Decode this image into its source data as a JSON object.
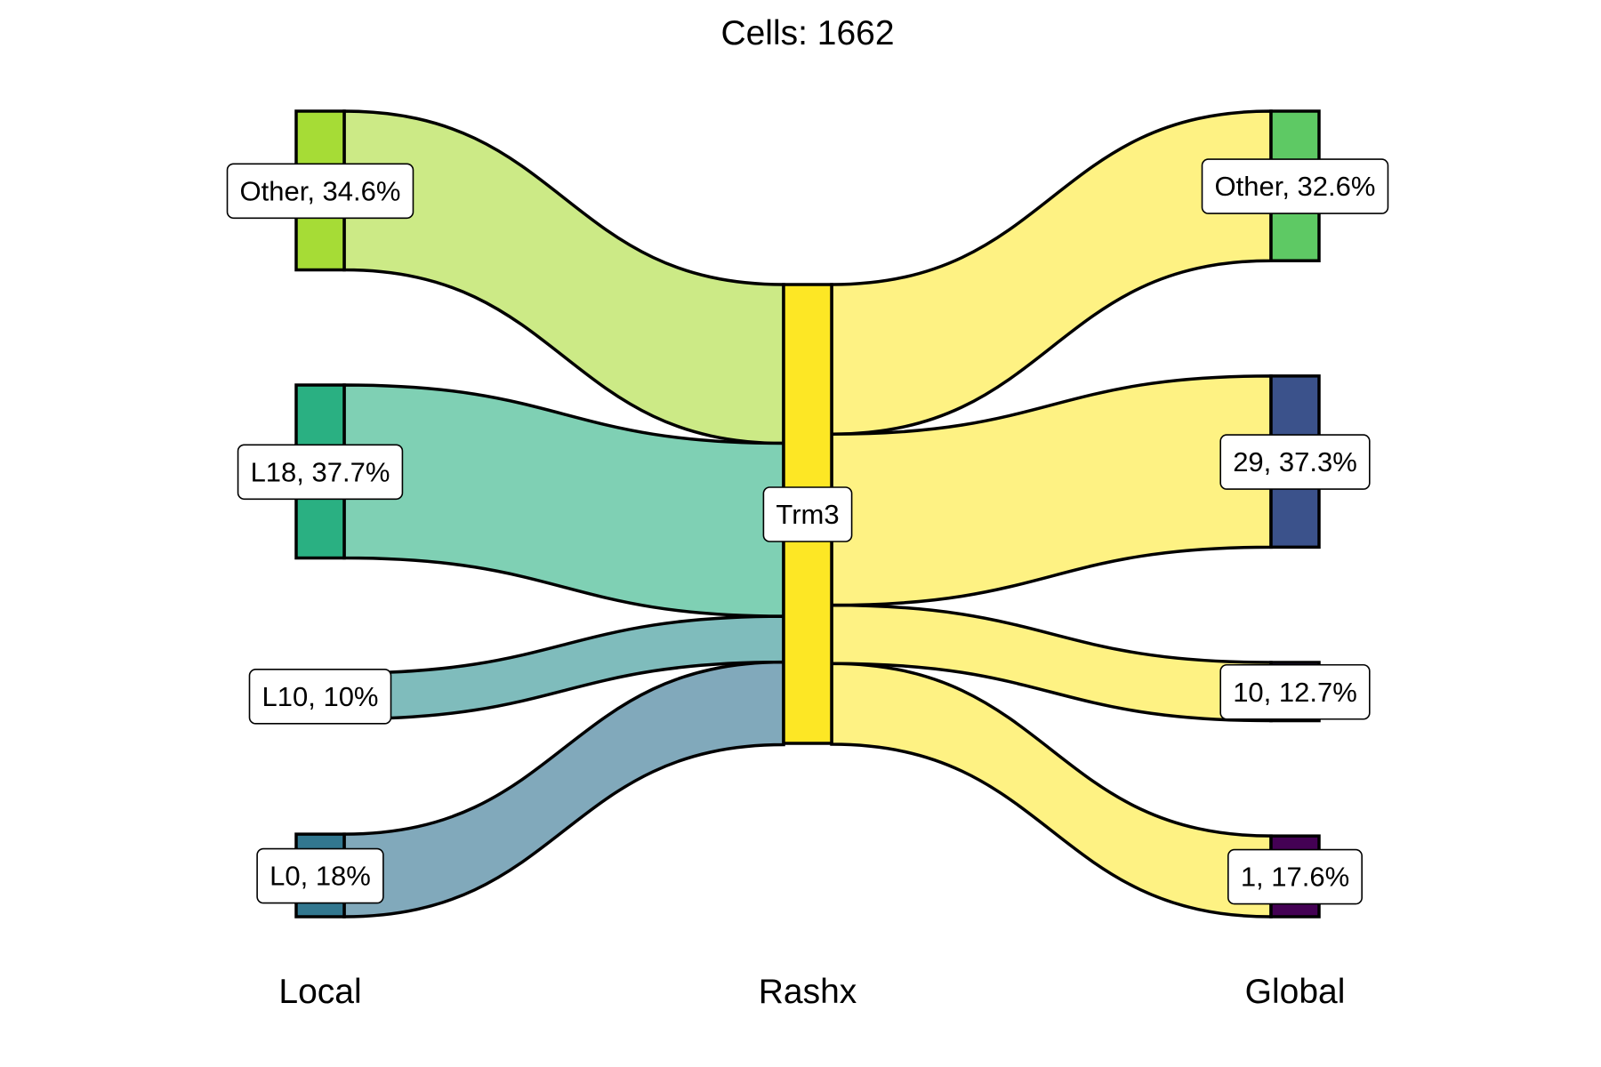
{
  "chart_data": {
    "type": "sankey",
    "title": "Cells:  1662",
    "total_cells": 1662,
    "axes": [
      "Local",
      "Rashx",
      "Global"
    ],
    "nodes": {
      "local": [
        {
          "id": "other_l",
          "label": "Other, 34.6%",
          "percent": 34.6,
          "color": "#A6DC36"
        },
        {
          "id": "l18",
          "label": "L18, 37.7%",
          "percent": 37.7,
          "color": "#2AB082"
        },
        {
          "id": "l10",
          "label": "L10, 10%",
          "percent": 10.0,
          "color": "#2A9B91"
        },
        {
          "id": "l0",
          "label": "L0, 18%",
          "percent": 18.0,
          "color": "#32778F"
        }
      ],
      "rashx": [
        {
          "id": "trm3",
          "label": "Trm3",
          "percent": 100.0,
          "color": "#FDE725"
        }
      ],
      "global": [
        {
          "id": "other_g",
          "label": "Other, 32.6%",
          "percent": 32.6,
          "color": "#5EC964"
        },
        {
          "id": "g29",
          "label": "29, 37.3%",
          "percent": 37.3,
          "color": "#3B528B"
        },
        {
          "id": "g10",
          "label": "10, 12.7%",
          "percent": 12.7,
          "color": "#472D7B"
        },
        {
          "id": "g1",
          "label": "1, 17.6%",
          "percent": 17.6,
          "color": "#440154"
        }
      ]
    },
    "flows_left": [
      {
        "from": "other_l",
        "to": "trm3",
        "percent": 34.6,
        "color": "#CCEA86"
      },
      {
        "from": "l18",
        "to": "trm3",
        "percent": 37.7,
        "color": "#7FD0B4"
      },
      {
        "from": "l10",
        "to": "trm3",
        "percent": 10.0,
        "color": "#7FBCBC"
      },
      {
        "from": "l0",
        "to": "trm3",
        "percent": 18.0,
        "color": "#81A9BB"
      }
    ],
    "flows_right": [
      {
        "from": "trm3",
        "to": "other_g",
        "percent": 32.6,
        "color": "#FEF283"
      },
      {
        "from": "trm3",
        "to": "g29",
        "percent": 37.3,
        "color": "#FEF283"
      },
      {
        "from": "trm3",
        "to": "g10",
        "percent": 12.7,
        "color": "#FEF283"
      },
      {
        "from": "trm3",
        "to": "g1",
        "percent": 17.6,
        "color": "#FEF283"
      }
    ]
  }
}
